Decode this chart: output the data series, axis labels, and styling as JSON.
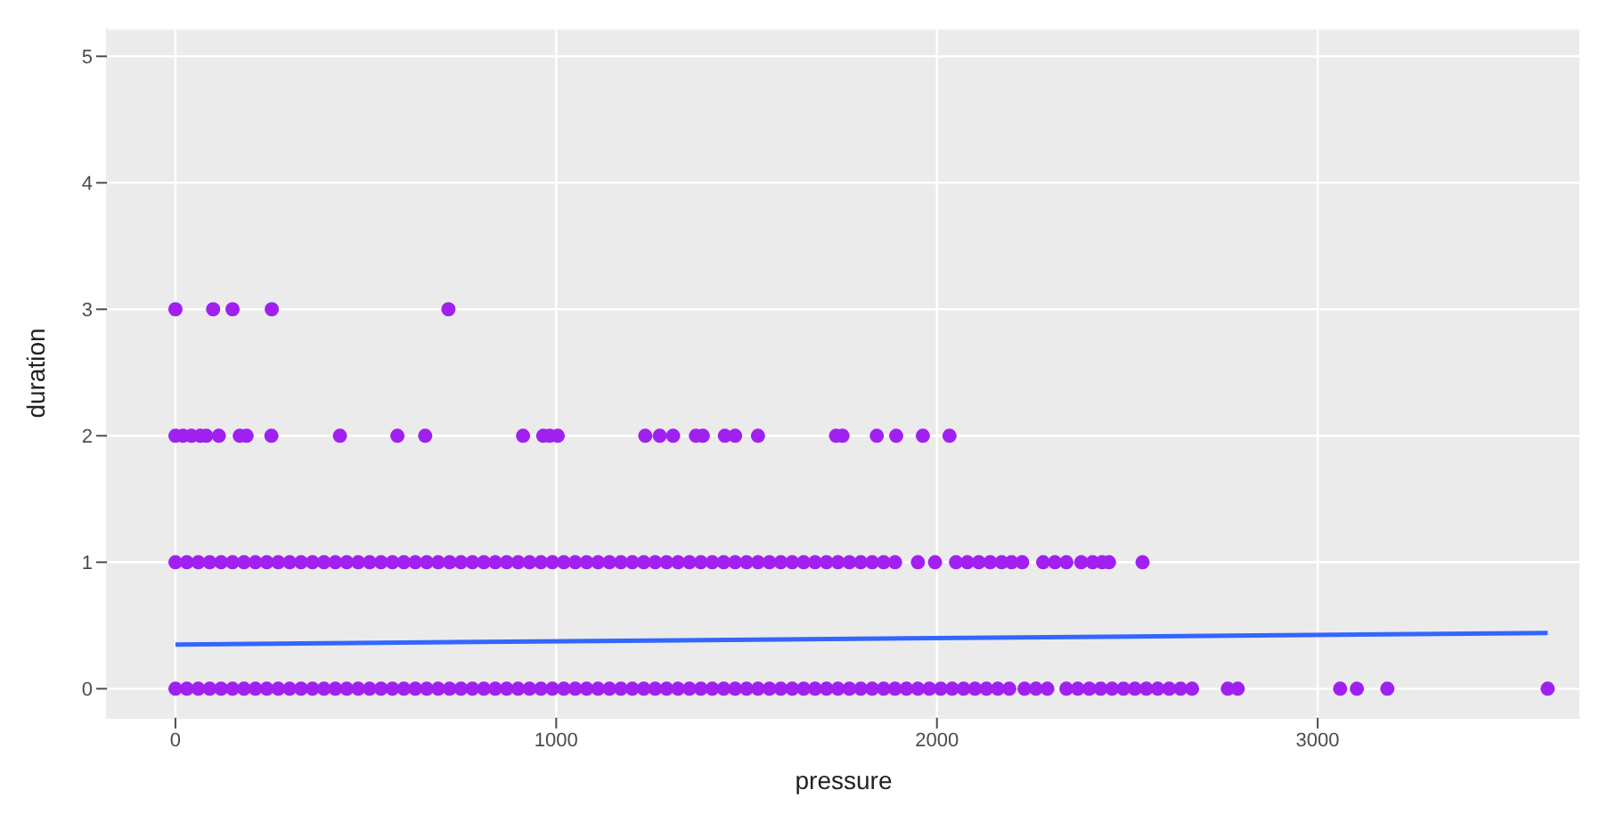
{
  "chart_data": {
    "type": "scatter",
    "xlabel": "pressure",
    "ylabel": "duration",
    "xlim": [
      -180,
      3690
    ],
    "xticks": [
      0,
      1000,
      2000,
      3000
    ],
    "ylim": [
      -0.23,
      5.22
    ],
    "yticks": [
      0,
      1,
      2,
      3,
      4,
      5
    ],
    "grid": true,
    "marker": "circle",
    "series": [
      {
        "color": "#a020f0",
        "x": [
          0,
          30,
          60,
          90,
          120,
          150,
          180,
          210,
          240,
          270,
          300,
          330,
          360,
          390,
          420,
          450,
          480,
          510,
          540,
          570,
          600,
          630,
          660,
          690,
          720,
          750,
          780,
          810,
          840,
          870,
          900,
          930,
          960,
          990,
          1020,
          1050,
          1080,
          1110,
          1140,
          1170,
          1200,
          1230,
          1260,
          1290,
          1320,
          1350,
          1380,
          1410,
          1440,
          1470,
          1500,
          1530,
          1560,
          1590,
          1620,
          1650,
          1680,
          1710,
          1740,
          1770,
          1800,
          1830,
          1860,
          1890,
          1920,
          1950,
          1980,
          2010,
          2040,
          2070,
          2100,
          2130,
          2160,
          2190,
          2230,
          2260,
          2290,
          2340,
          2370,
          2400,
          2430,
          2460,
          2490,
          2520,
          2550,
          2580,
          2610,
          2640,
          2670,
          2764,
          2790,
          3059,
          3103,
          3183,
          3604
        ],
        "values": [
          0,
          0,
          0,
          0,
          0,
          0,
          0,
          0,
          0,
          0,
          0,
          0,
          0,
          0,
          0,
          0,
          0,
          0,
          0,
          0,
          0,
          0,
          0,
          0,
          0,
          0,
          0,
          0,
          0,
          0,
          0,
          0,
          0,
          0,
          0,
          0,
          0,
          0,
          0,
          0,
          0,
          0,
          0,
          0,
          0,
          0,
          0,
          0,
          0,
          0,
          0,
          0,
          0,
          0,
          0,
          0,
          0,
          0,
          0,
          0,
          0,
          0,
          0,
          0,
          0,
          0,
          0,
          0,
          0,
          0,
          0,
          0,
          0,
          0,
          0,
          0,
          0,
          0,
          0,
          0,
          0,
          0,
          0,
          0,
          0,
          0,
          0,
          0,
          0,
          0,
          0,
          0,
          0,
          0,
          0
        ]
      },
      {
        "color": "#a020f0",
        "x": [
          0,
          30,
          60,
          90,
          120,
          150,
          180,
          210,
          240,
          270,
          300,
          330,
          360,
          390,
          420,
          450,
          480,
          510,
          540,
          570,
          600,
          630,
          660,
          690,
          720,
          750,
          780,
          810,
          840,
          870,
          900,
          930,
          960,
          990,
          1020,
          1050,
          1080,
          1110,
          1140,
          1170,
          1200,
          1230,
          1260,
          1290,
          1320,
          1350,
          1380,
          1410,
          1440,
          1470,
          1500,
          1530,
          1560,
          1590,
          1620,
          1650,
          1680,
          1710,
          1740,
          1770,
          1800,
          1830,
          1860,
          1890,
          1950,
          1995,
          2050,
          2080,
          2110,
          2140,
          2170,
          2196,
          2224,
          2279,
          2310,
          2340,
          2379,
          2409,
          2434,
          2452,
          2540
        ],
        "values": [
          1,
          1,
          1,
          1,
          1,
          1,
          1,
          1,
          1,
          1,
          1,
          1,
          1,
          1,
          1,
          1,
          1,
          1,
          1,
          1,
          1,
          1,
          1,
          1,
          1,
          1,
          1,
          1,
          1,
          1,
          1,
          1,
          1,
          1,
          1,
          1,
          1,
          1,
          1,
          1,
          1,
          1,
          1,
          1,
          1,
          1,
          1,
          1,
          1,
          1,
          1,
          1,
          1,
          1,
          1,
          1,
          1,
          1,
          1,
          1,
          1,
          1,
          1,
          1,
          1,
          1,
          1,
          1,
          1,
          1,
          1,
          1,
          1,
          1,
          1,
          1,
          1,
          1,
          1,
          1,
          1
        ]
      },
      {
        "color": "#a020f0",
        "x": [
          0,
          20,
          42,
          65,
          81,
          114,
          169,
          187,
          252,
          432,
          583,
          656,
          913,
          966,
          983,
          1004,
          1234,
          1272,
          1307,
          1367,
          1385,
          1443,
          1470,
          1530,
          1735,
          1752,
          1842,
          1893,
          1963,
          2033
        ],
        "values": [
          2,
          2,
          2,
          2,
          2,
          2,
          2,
          2,
          2,
          2,
          2,
          2,
          2,
          2,
          2,
          2,
          2,
          2,
          2,
          2,
          2,
          2,
          2,
          2,
          2,
          2,
          2,
          2,
          2,
          2
        ]
      },
      {
        "color": "#a020f0",
        "x": [
          0,
          99,
          150,
          253,
          717
        ],
        "values": [
          3,
          3,
          3,
          3,
          3
        ]
      },
      {
        "type": "line",
        "color": "#3366ff",
        "line_style": "solid",
        "marker": "none",
        "x": [
          0,
          3604
        ],
        "values": [
          0.35,
          0.44
        ]
      }
    ]
  }
}
